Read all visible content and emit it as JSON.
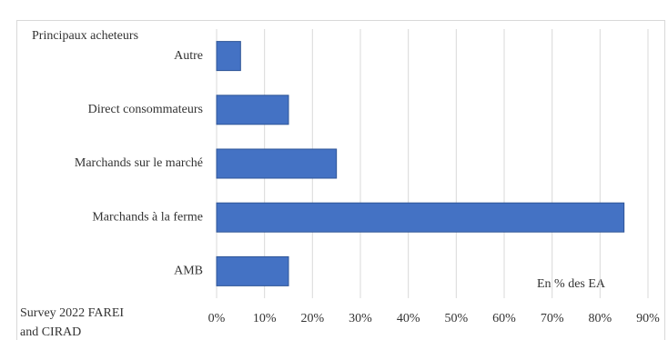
{
  "chart_data": {
    "type": "bar",
    "orientation": "horizontal",
    "title": "Principaux acheteurs",
    "annotation": "En % des EA",
    "source": [
      "Survey 2022 FAREI",
      "and CIRAD"
    ],
    "categories": [
      "Autre",
      "Direct consommateurs",
      "Marchands sur le marché",
      "Marchands à la ferme",
      "AMB"
    ],
    "values": [
      5,
      15,
      25,
      85,
      15
    ],
    "color": "#4472c4",
    "xlim": [
      0,
      90
    ],
    "xticks": [
      {
        "value": 0,
        "label": "0%"
      },
      {
        "value": 10,
        "label": "10%"
      },
      {
        "value": 20,
        "label": "20%"
      },
      {
        "value": 30,
        "label": "30%"
      },
      {
        "value": 40,
        "label": "40%"
      },
      {
        "value": 50,
        "label": "50%"
      },
      {
        "value": 60,
        "label": "60%"
      },
      {
        "value": 70,
        "label": "70%"
      },
      {
        "value": 80,
        "label": "80%"
      },
      {
        "value": 90,
        "label": "90%"
      }
    ],
    "grid": true
  }
}
